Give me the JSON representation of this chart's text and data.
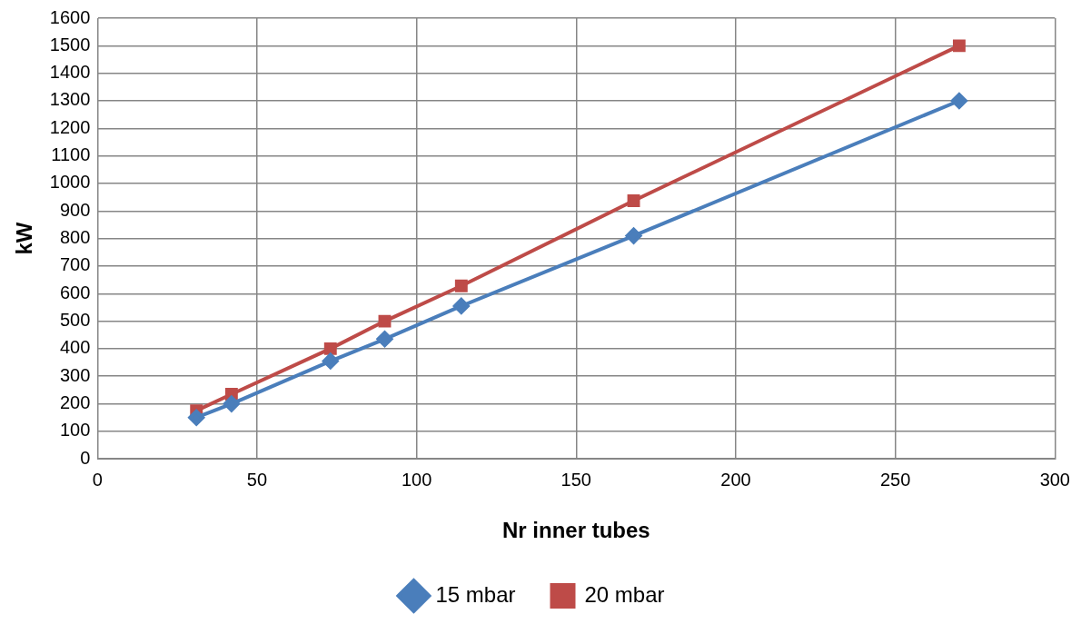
{
  "chart_data": {
    "type": "line",
    "xlabel": "Nr inner tubes",
    "ylabel": "kW",
    "xlim": [
      0,
      300
    ],
    "xticks": [
      0,
      50,
      100,
      150,
      200,
      250,
      300
    ],
    "ylim": [
      0,
      1600
    ],
    "yticks": [
      0,
      100,
      200,
      300,
      400,
      500,
      600,
      700,
      800,
      900,
      1000,
      1100,
      1200,
      1300,
      1400,
      1500,
      1600
    ],
    "grid": true,
    "legend": "bottom",
    "line_style": "solid",
    "series": [
      {
        "name": "15 mbar",
        "color": "#4a7ebb",
        "marker": "diamond",
        "x": [
          31,
          42,
          73,
          90,
          114,
          168,
          270
        ],
        "values": [
          150,
          200,
          355,
          435,
          555,
          810,
          1300
        ]
      },
      {
        "name": "20 mbar",
        "color": "#be4b48",
        "marker": "square",
        "x": [
          31,
          42,
          73,
          90,
          114,
          168,
          270
        ],
        "values": [
          175,
          235,
          400,
          500,
          628,
          937,
          1500
        ]
      }
    ]
  }
}
